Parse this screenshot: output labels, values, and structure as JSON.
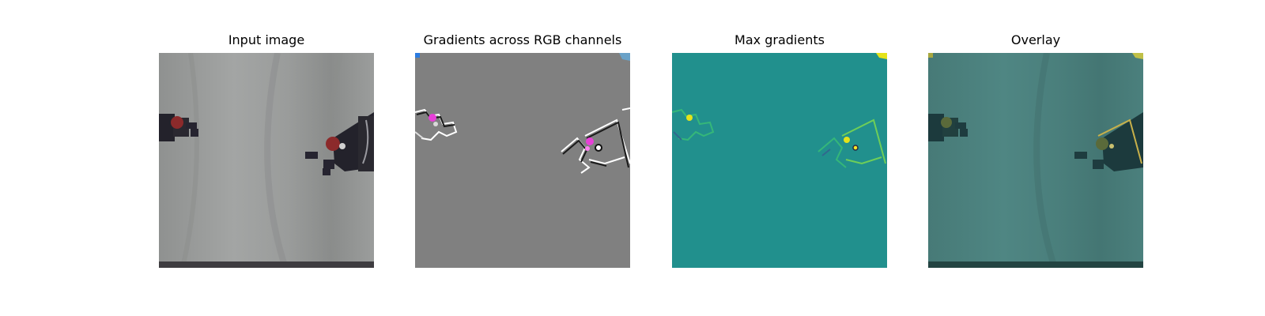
{
  "figure": {
    "panels": [
      {
        "title": "Input image"
      },
      {
        "title": "Gradients across RGB channels"
      },
      {
        "title": "Max gradients"
      },
      {
        "title": "Overlay"
      }
    ]
  },
  "colors": {
    "input_background": "#9a9c9b",
    "gradient_background": "#808080",
    "max_gradient_background": "#21908d",
    "overlay_background": "#4a7f7c",
    "gripper_dark": "#23222b",
    "ball_red": "#8c2a2b",
    "gradient_highlight": "#e83fd8",
    "max_gradient_highlight": "#e4e31a"
  }
}
